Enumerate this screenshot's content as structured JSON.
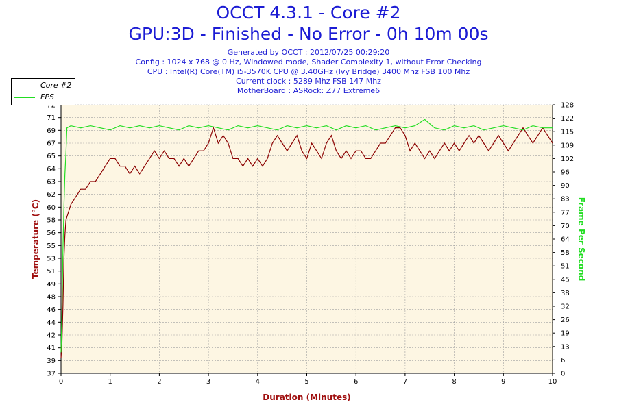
{
  "header": {
    "title": "OCCT 4.3.1 - Core #2",
    "subtitle": "GPU:3D - Finished - No Error - 0h 10m 00s",
    "generated": "Generated by OCCT : 2012/07/25 00:29:20",
    "config": "Config : 1024 x 768 @ 0 Hz, Windowed mode, Shader Complexity 1, without Error Checking",
    "cpu": "CPU : Intel(R) Core(TM) i5-3570K CPU @ 3.40GHz (Ivy Bridge) 3400 Mhz FSB 100 Mhz",
    "clock": "Current clock : 5289 Mhz FSB 147 Mhz",
    "motherboard": "MotherBoard : ASRock: Z77 Extreme6"
  },
  "colors": {
    "temperature": "#8b0000",
    "fps": "#22dd22",
    "plot_bg": "#fdf6e3",
    "grid": "#a0a0a0",
    "title": "#1c1cd4",
    "axis_label_left": "#a01010",
    "axis_label_right": "#22dd22"
  },
  "chart_data": {
    "type": "line",
    "title": "OCCT 4.3.1 - Core #2",
    "xlabel": "Duration (Minutes)",
    "ylabel": "Temperature (°C)",
    "y2label": "Frame Per Second",
    "xlim": [
      0,
      10
    ],
    "ylim": [
      37,
      72
    ],
    "y2lim": [
      0,
      128
    ],
    "x_ticks": [
      "0",
      "1",
      "2",
      "3",
      "4",
      "5",
      "6",
      "7",
      "8",
      "9",
      "10"
    ],
    "y_ticks": [
      "37",
      "39",
      "41",
      "42",
      "44",
      "46",
      "48",
      "49",
      "51",
      "53",
      "55",
      "56",
      "58",
      "60",
      "62",
      "63",
      "64",
      "65",
      "67",
      "69",
      "71",
      "72"
    ],
    "y2_ticks": [
      "0",
      "6",
      "13",
      "19",
      "26",
      "32",
      "38",
      "45",
      "51",
      "58",
      "64",
      "70",
      "77",
      "83",
      "90",
      "96",
      "102",
      "109",
      "115",
      "122",
      "128"
    ],
    "grid": true,
    "legend": "top-left",
    "series": [
      {
        "name": "Core #2",
        "axis": "left",
        "x": [
          0.0,
          0.02,
          0.04,
          0.06,
          0.08,
          0.1,
          0.15,
          0.2,
          0.3,
          0.4,
          0.5,
          0.6,
          0.7,
          0.8,
          0.9,
          1.0,
          1.1,
          1.2,
          1.3,
          1.4,
          1.5,
          1.6,
          1.7,
          1.8,
          1.9,
          2.0,
          2.1,
          2.2,
          2.3,
          2.4,
          2.5,
          2.6,
          2.7,
          2.8,
          2.9,
          3.0,
          3.1,
          3.2,
          3.3,
          3.4,
          3.5,
          3.6,
          3.7,
          3.8,
          3.9,
          4.0,
          4.1,
          4.2,
          4.3,
          4.4,
          4.5,
          4.6,
          4.7,
          4.8,
          4.9,
          5.0,
          5.1,
          5.2,
          5.3,
          5.4,
          5.5,
          5.6,
          5.7,
          5.8,
          5.9,
          6.0,
          6.1,
          6.2,
          6.3,
          6.4,
          6.5,
          6.6,
          6.7,
          6.8,
          6.9,
          7.0,
          7.1,
          7.2,
          7.3,
          7.4,
          7.5,
          7.6,
          7.7,
          7.8,
          7.9,
          8.0,
          8.1,
          8.2,
          8.3,
          8.4,
          8.5,
          8.6,
          8.7,
          8.8,
          8.9,
          9.0,
          9.1,
          9.2,
          9.3,
          9.4,
          9.5,
          9.6,
          9.7,
          9.8,
          9.9,
          10.0
        ],
        "values": [
          39,
          41,
          46,
          52,
          55,
          57,
          58,
          59,
          60,
          61,
          61,
          62,
          62,
          63,
          64,
          65,
          65,
          64,
          64,
          63,
          64,
          63,
          64,
          65,
          66,
          65,
          66,
          65,
          65,
          64,
          65,
          64,
          65,
          66,
          66,
          67,
          69,
          67,
          68,
          67,
          65,
          65,
          64,
          65,
          64,
          65,
          64,
          65,
          67,
          68,
          67,
          66,
          67,
          68,
          66,
          65,
          67,
          66,
          65,
          67,
          68,
          66,
          65,
          66,
          65,
          66,
          66,
          65,
          65,
          66,
          67,
          67,
          68,
          69,
          69,
          68,
          66,
          67,
          66,
          65,
          66,
          65,
          66,
          67,
          66,
          67,
          66,
          67,
          68,
          67,
          68,
          67,
          66,
          67,
          68,
          67,
          66,
          67,
          68,
          69,
          68,
          67,
          68,
          69,
          68,
          67
        ]
      },
      {
        "name": "FPS",
        "axis": "right",
        "x": [
          0.0,
          0.02,
          0.04,
          0.06,
          0.08,
          0.1,
          0.12,
          0.2,
          0.4,
          0.6,
          0.8,
          1.0,
          1.2,
          1.4,
          1.6,
          1.8,
          2.0,
          2.2,
          2.4,
          2.6,
          2.8,
          3.0,
          3.2,
          3.4,
          3.6,
          3.8,
          4.0,
          4.2,
          4.4,
          4.6,
          4.8,
          5.0,
          5.2,
          5.4,
          5.6,
          5.8,
          6.0,
          6.2,
          6.4,
          6.6,
          6.8,
          7.0,
          7.2,
          7.4,
          7.6,
          7.8,
          8.0,
          8.2,
          8.4,
          8.6,
          8.8,
          9.0,
          9.2,
          9.4,
          9.6,
          9.8,
          10.0
        ],
        "values": [
          10,
          30,
          60,
          80,
          95,
          105,
          117,
          118,
          117,
          118,
          117,
          116,
          118,
          117,
          118,
          117,
          118,
          117,
          116,
          118,
          117,
          118,
          117,
          116,
          118,
          117,
          118,
          117,
          116,
          118,
          117,
          118,
          117,
          118,
          116,
          118,
          117,
          118,
          116,
          117,
          118,
          117,
          118,
          121,
          117,
          116,
          118,
          117,
          118,
          116,
          117,
          118,
          117,
          116,
          118,
          117,
          117
        ]
      }
    ]
  }
}
